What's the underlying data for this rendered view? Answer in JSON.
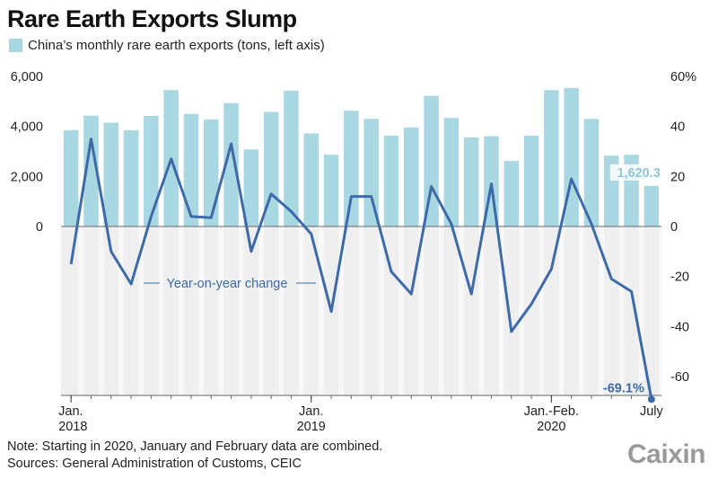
{
  "title": "Rare Earth Exports Slump",
  "legend_label": "China’s monthly rare earth exports (tons, left axis)",
  "line_label": "Year-on-year change",
  "notes": {
    "line1": "Note: Starting in 2020, January and February data are combined.",
    "line2": "Sources: General Administration of Customs, CEIC"
  },
  "logo": "Caixin",
  "colors": {
    "bar": "#a9d7e2",
    "line": "#3e6aa8",
    "shade": "#efefef"
  },
  "chart_data": {
    "type": "bar",
    "x": [
      "2018-01",
      "2018-02",
      "2018-03",
      "2018-04",
      "2018-05",
      "2018-06",
      "2018-07",
      "2018-08",
      "2018-09",
      "2018-10",
      "2018-11",
      "2018-12",
      "2019-01",
      "2019-02",
      "2019-03",
      "2019-04",
      "2019-05",
      "2019-06",
      "2019-07",
      "2019-08",
      "2019-09",
      "2019-10",
      "2019-11",
      "2019-12",
      "2020-01/02",
      "2020-03",
      "2020-04",
      "2020-05",
      "2020-06",
      "2020-07"
    ],
    "series": [
      {
        "name": "China’s monthly rare earth exports (tons, left axis)",
        "type": "bar",
        "axis": "left",
        "values": [
          3850,
          4430,
          4150,
          3850,
          4420,
          5450,
          4500,
          4280,
          4930,
          3080,
          4580,
          5430,
          3720,
          2870,
          4630,
          4300,
          3630,
          3960,
          5220,
          4340,
          3560,
          3610,
          2620,
          3630,
          5450,
          5540,
          4300,
          2830,
          2870,
          1620.3
        ]
      },
      {
        "name": "Year-on-year change",
        "type": "line",
        "axis": "right",
        "values": [
          -15,
          35,
          -10,
          -23,
          4,
          27,
          4,
          3.5,
          33,
          -10,
          13,
          6,
          -3,
          -34,
          12,
          12,
          -18,
          -27,
          16,
          1,
          -27,
          17,
          -42,
          -31,
          -17,
          19,
          1,
          -21,
          -26,
          -69.1
        ]
      }
    ],
    "left_axis": {
      "ylim": [
        -6500,
        6000
      ],
      "ticks": [
        0,
        2000,
        4000,
        6000
      ],
      "tick_labels": [
        "0",
        "2,000",
        "4,000",
        "6,000"
      ]
    },
    "right_axis": {
      "ylim": [
        -65,
        60
      ],
      "ticks": [
        -60,
        -40,
        -20,
        0,
        20,
        40,
        60
      ],
      "tick_labels": [
        "-60",
        "-40",
        "-20",
        "0",
        "20",
        "40",
        "60%"
      ]
    },
    "x_ticks": [
      {
        "index": 0,
        "line1": "Jan.",
        "line2": "2018"
      },
      {
        "index": 12,
        "line1": "Jan.",
        "line2": "2019"
      },
      {
        "index": 24,
        "line1": "Jan.-Feb.",
        "line2": "2020"
      },
      {
        "index": 29,
        "line1": "July",
        "line2": ""
      }
    ],
    "annotations": [
      {
        "series": 0,
        "index": 29,
        "text": "1,620.3"
      },
      {
        "series": 1,
        "index": 29,
        "text": "-69.1%"
      }
    ],
    "grid": false,
    "legend_position": "top-left"
  }
}
